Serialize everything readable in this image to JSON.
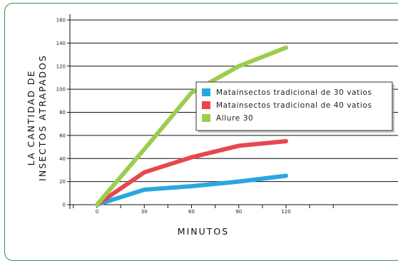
{
  "chart_data": {
    "type": "line",
    "xlabel": "MINUTOS",
    "ylabel_lines": [
      "LA CANTIDAD DE",
      "INSECTOS ATRAPADOS"
    ],
    "x": [
      0,
      30,
      60,
      90,
      120
    ],
    "x_ticks": [
      "0",
      "30",
      "60",
      "90",
      "120"
    ],
    "y_ticks": [
      "0",
      "20",
      "40",
      "60",
      "80",
      "100",
      "120",
      "140",
      "160"
    ],
    "xlim": [
      0,
      120
    ],
    "ylim": [
      0,
      160
    ],
    "grid": "horizontal",
    "legend_position": "right",
    "series": [
      {
        "name": "Matainsectos tradicional de 30 vatios",
        "color": "#29a8df",
        "points": [
          [
            0,
            0
          ],
          [
            30,
            13
          ],
          [
            60,
            16
          ],
          [
            90,
            20
          ],
          [
            120,
            25
          ]
        ]
      },
      {
        "name": "Matainsectos tradicional de 40 vatios",
        "color": "#e8474e",
        "points": [
          [
            0,
            0
          ],
          [
            30,
            28
          ],
          [
            60,
            41
          ],
          [
            90,
            51
          ],
          [
            120,
            55
          ]
        ]
      },
      {
        "name": "Allure 30",
        "color": "#9ccd4e",
        "points": [
          [
            0,
            0
          ],
          [
            30,
            48
          ],
          [
            60,
            97
          ],
          [
            90,
            120
          ],
          [
            120,
            136
          ]
        ]
      }
    ]
  }
}
